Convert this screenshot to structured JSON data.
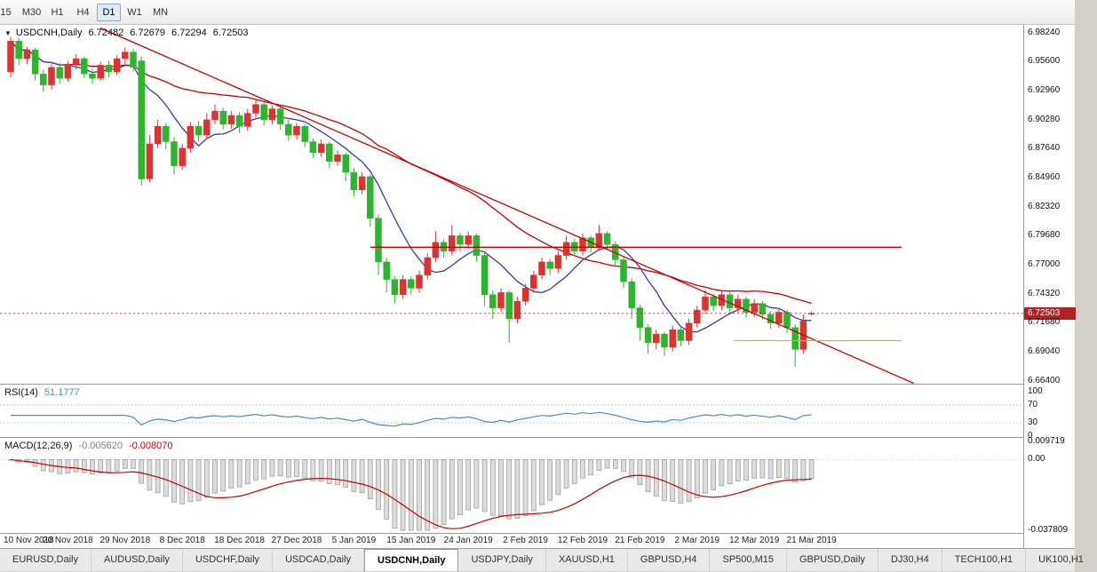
{
  "colors": {
    "up": "#e03131",
    "down": "#2db52d",
    "ma_fast": "#303f9f",
    "ma_slow": "#cc0000",
    "trendline": "#cc0000",
    "support_line": "#9acd32",
    "bid_line": "#cc3333",
    "bid_badge_bg": "#b22222",
    "rsi_line": "#4a8fc0",
    "rsi_levels": "#c8c8c8",
    "macd_hist_fill": "#dcdcdc",
    "macd_hist_stroke": "#9b9b9b",
    "macd_signal": "#cc0000",
    "macd_value_main_color": "#808080"
  },
  "toolbar": {
    "timeframes": [
      {
        "label": "15",
        "active": false
      },
      {
        "label": "M30",
        "active": false
      },
      {
        "label": "H1",
        "active": false
      },
      {
        "label": "H4",
        "active": false
      },
      {
        "label": "D1",
        "active": true
      },
      {
        "label": "W1",
        "active": false
      },
      {
        "label": "MN",
        "active": false
      }
    ]
  },
  "chart": {
    "symbol_period": "USDCNH,Daily",
    "ohlc": {
      "open": "6.72482",
      "high": "6.72679",
      "low": "6.72294",
      "close": "6.72503"
    },
    "price_badge": "6.72503",
    "price_axis": [
      "6.98240",
      "6.95600",
      "6.92960",
      "6.90280",
      "6.87640",
      "6.84960",
      "6.82320",
      "6.79680",
      "6.77000",
      "6.74320",
      "6.71680",
      "6.69040",
      "6.66400"
    ]
  },
  "rsi": {
    "title": "RSI(14)",
    "value": "51.1777",
    "axis": [
      "100",
      "70",
      "30",
      "0"
    ],
    "levels": [
      70,
      30
    ]
  },
  "macd": {
    "title": "MACD(12,26,9)",
    "value_main": "-0.005620",
    "value_signal": "-0.008070",
    "axis": [
      "0.009719",
      "0.00",
      "-0.037809"
    ]
  },
  "dates": [
    "10 Nov 2018",
    "20 Nov 2018",
    "29 Nov 2018",
    "8 Dec 2018",
    "18 Dec 2018",
    "27 Dec 2018",
    "5 Jan 2019",
    "15 Jan 2019",
    "24 Jan 2019",
    "2 Feb 2019",
    "12 Feb 2019",
    "21 Feb 2019",
    "2 Mar 2019",
    "12 Mar 2019",
    "21 Mar 2019"
  ],
  "tabs": [
    {
      "label": "EURUSD,Daily",
      "active": false
    },
    {
      "label": "AUDUSD,Daily",
      "active": false
    },
    {
      "label": "USDCHF,Daily",
      "active": false
    },
    {
      "label": "USDCAD,Daily",
      "active": false
    },
    {
      "label": "USDCNH,Daily",
      "active": true
    },
    {
      "label": "USDJPY,Daily",
      "active": false
    },
    {
      "label": "XAUUSD,H1",
      "active": false
    },
    {
      "label": "GBPUSD,H4",
      "active": false
    },
    {
      "label": "SP500,M15",
      "active": false
    },
    {
      "label": "GBPUSD,Daily",
      "active": false
    },
    {
      "label": "DJ30,H4",
      "active": false
    },
    {
      "label": "TECH100,H1",
      "active": false
    },
    {
      "label": "UK100,H1",
      "active": false
    }
  ],
  "chart_data": {
    "type": "candlestick",
    "symbol": "USDCNH",
    "timeframe": "Daily",
    "ylim": [
      6.6606,
      6.9889
    ],
    "bid": 6.72503,
    "grid": false,
    "date_bar_indices": [
      0,
      7,
      14,
      21,
      28,
      35,
      42,
      49,
      56,
      63,
      70,
      77,
      84,
      91,
      98
    ],
    "candles": [
      [
        6.946,
        6.978,
        6.941,
        6.974
      ],
      [
        6.974,
        6.977,
        6.952,
        6.958
      ],
      [
        6.958,
        6.969,
        6.953,
        6.966
      ],
      [
        6.966,
        6.968,
        6.938,
        6.944
      ],
      [
        6.944,
        6.948,
        6.928,
        6.934
      ],
      [
        6.934,
        6.953,
        6.93,
        6.95
      ],
      [
        6.95,
        6.954,
        6.935,
        6.94
      ],
      [
        6.94,
        6.956,
        6.937,
        6.953
      ],
      [
        6.953,
        6.962,
        6.948,
        6.958
      ],
      [
        6.958,
        6.96,
        6.94,
        6.944
      ],
      [
        6.944,
        6.949,
        6.935,
        6.94
      ],
      [
        6.94,
        6.955,
        6.938,
        6.952
      ],
      [
        6.952,
        6.956,
        6.941,
        6.946
      ],
      [
        6.946,
        6.961,
        6.943,
        6.958
      ],
      [
        6.958,
        6.968,
        6.953,
        6.964
      ],
      [
        6.964,
        6.967,
        6.946,
        6.95
      ],
      [
        6.956,
        6.96,
        6.842,
        6.848
      ],
      [
        6.848,
        6.888,
        6.845,
        6.88
      ],
      [
        6.88,
        6.902,
        6.876,
        6.896
      ],
      [
        6.896,
        6.899,
        6.875,
        6.882
      ],
      [
        6.882,
        6.886,
        6.852,
        6.86
      ],
      [
        6.86,
        6.88,
        6.856,
        6.876
      ],
      [
        6.876,
        6.9,
        6.872,
        6.896
      ],
      [
        6.896,
        6.901,
        6.882,
        6.888
      ],
      [
        6.888,
        6.908,
        6.885,
        6.902
      ],
      [
        6.902,
        6.916,
        6.898,
        6.91
      ],
      [
        6.91,
        6.913,
        6.893,
        6.898
      ],
      [
        6.898,
        6.91,
        6.894,
        6.906
      ],
      [
        6.906,
        6.909,
        6.89,
        6.896
      ],
      [
        6.896,
        6.912,
        6.892,
        6.908
      ],
      [
        6.908,
        6.92,
        6.904,
        6.916
      ],
      [
        6.916,
        6.918,
        6.897,
        6.902
      ],
      [
        6.902,
        6.915,
        6.898,
        6.912
      ],
      [
        6.912,
        6.914,
        6.893,
        6.898
      ],
      [
        6.898,
        6.902,
        6.883,
        6.888
      ],
      [
        6.888,
        6.899,
        6.884,
        6.896
      ],
      [
        6.896,
        6.898,
        6.877,
        6.882
      ],
      [
        6.882,
        6.885,
        6.867,
        6.872
      ],
      [
        6.872,
        6.884,
        6.868,
        6.88
      ],
      [
        6.88,
        6.882,
        6.858,
        6.864
      ],
      [
        6.864,
        6.874,
        6.86,
        6.87
      ],
      [
        6.87,
        6.872,
        6.846,
        6.854
      ],
      [
        6.854,
        6.858,
        6.832,
        6.838
      ],
      [
        6.838,
        6.854,
        6.834,
        6.85
      ],
      [
        6.85,
        6.852,
        6.804,
        6.812
      ],
      [
        6.812,
        6.815,
        6.76,
        6.772
      ],
      [
        6.772,
        6.776,
        6.744,
        6.756
      ],
      [
        6.756,
        6.759,
        6.734,
        6.742
      ],
      [
        6.742,
        6.76,
        6.738,
        6.756
      ],
      [
        6.756,
        6.759,
        6.742,
        6.748
      ],
      [
        6.748,
        6.764,
        6.744,
        6.76
      ],
      [
        6.76,
        6.78,
        6.756,
        6.776
      ],
      [
        6.776,
        6.8,
        6.772,
        6.79
      ],
      [
        6.79,
        6.793,
        6.776,
        6.782
      ],
      [
        6.782,
        6.806,
        6.778,
        6.796
      ],
      [
        6.796,
        6.799,
        6.782,
        6.788
      ],
      [
        6.788,
        6.8,
        6.784,
        6.796
      ],
      [
        6.796,
        6.798,
        6.772,
        6.778
      ],
      [
        6.778,
        6.781,
        6.732,
        6.742
      ],
      [
        6.742,
        6.746,
        6.72,
        6.73
      ],
      [
        6.73,
        6.748,
        6.726,
        6.744
      ],
      [
        6.744,
        6.746,
        6.698,
        6.72
      ],
      [
        6.72,
        6.74,
        6.716,
        6.736
      ],
      [
        6.736,
        6.752,
        6.732,
        6.748
      ],
      [
        6.748,
        6.764,
        6.744,
        6.76
      ],
      [
        6.76,
        6.776,
        6.756,
        6.772
      ],
      [
        6.772,
        6.775,
        6.76,
        6.766
      ],
      [
        6.766,
        6.782,
        6.762,
        6.778
      ],
      [
        6.778,
        6.796,
        6.774,
        6.79
      ],
      [
        6.79,
        6.793,
        6.777,
        6.782
      ],
      [
        6.782,
        6.798,
        6.778,
        6.794
      ],
      [
        6.794,
        6.796,
        6.781,
        6.786
      ],
      [
        6.786,
        6.806,
        6.782,
        6.798
      ],
      [
        6.798,
        6.8,
        6.783,
        6.788
      ],
      [
        6.788,
        6.791,
        6.769,
        6.774
      ],
      [
        6.774,
        6.777,
        6.748,
        6.754
      ],
      [
        6.754,
        6.757,
        6.72,
        6.73
      ],
      [
        6.73,
        6.733,
        6.7,
        6.712
      ],
      [
        6.712,
        6.715,
        6.688,
        6.698
      ],
      [
        6.698,
        6.71,
        6.692,
        6.706
      ],
      [
        6.706,
        6.708,
        6.686,
        6.694
      ],
      [
        6.694,
        6.714,
        6.69,
        6.71
      ],
      [
        6.71,
        6.712,
        6.695,
        6.7
      ],
      [
        6.7,
        6.72,
        6.696,
        6.716
      ],
      [
        6.716,
        6.732,
        6.712,
        6.728
      ],
      [
        6.728,
        6.746,
        6.724,
        6.74
      ],
      [
        6.74,
        6.743,
        6.727,
        6.732
      ],
      [
        6.732,
        6.746,
        6.728,
        6.742
      ],
      [
        6.742,
        6.744,
        6.725,
        6.73
      ],
      [
        6.73,
        6.742,
        6.726,
        6.738
      ],
      [
        6.738,
        6.74,
        6.721,
        6.726
      ],
      [
        6.726,
        6.738,
        6.722,
        6.734
      ],
      [
        6.734,
        6.736,
        6.719,
        6.724
      ],
      [
        6.724,
        6.727,
        6.711,
        6.716
      ],
      [
        6.716,
        6.73,
        6.712,
        6.726
      ],
      [
        6.726,
        6.728,
        6.707,
        6.712
      ],
      [
        6.712,
        6.715,
        6.676,
        6.692
      ],
      [
        6.692,
        6.724,
        6.688,
        6.718
      ],
      [
        6.72482,
        6.72679,
        6.72294,
        6.72503
      ]
    ],
    "overlays": {
      "ma_fast_period": 8,
      "ma_slow_period": 30,
      "trendline": {
        "from_bar": 11,
        "from_price": 6.986,
        "to_bar": 110.5,
        "to_price": 6.661
      },
      "hlines": [
        {
          "price": 6.7855,
          "from_bar": 44,
          "to_bar": 109,
          "color": "#cc0000"
        },
        {
          "price": 6.7,
          "from_bar": 88.5,
          "to_bar": 109,
          "color": "#9acd32"
        }
      ]
    },
    "rsi_period": 14,
    "macd_params": [
      12,
      26,
      9
    ],
    "macd_scale": {
      "max": 0.009719,
      "min": -0.037809
    }
  }
}
